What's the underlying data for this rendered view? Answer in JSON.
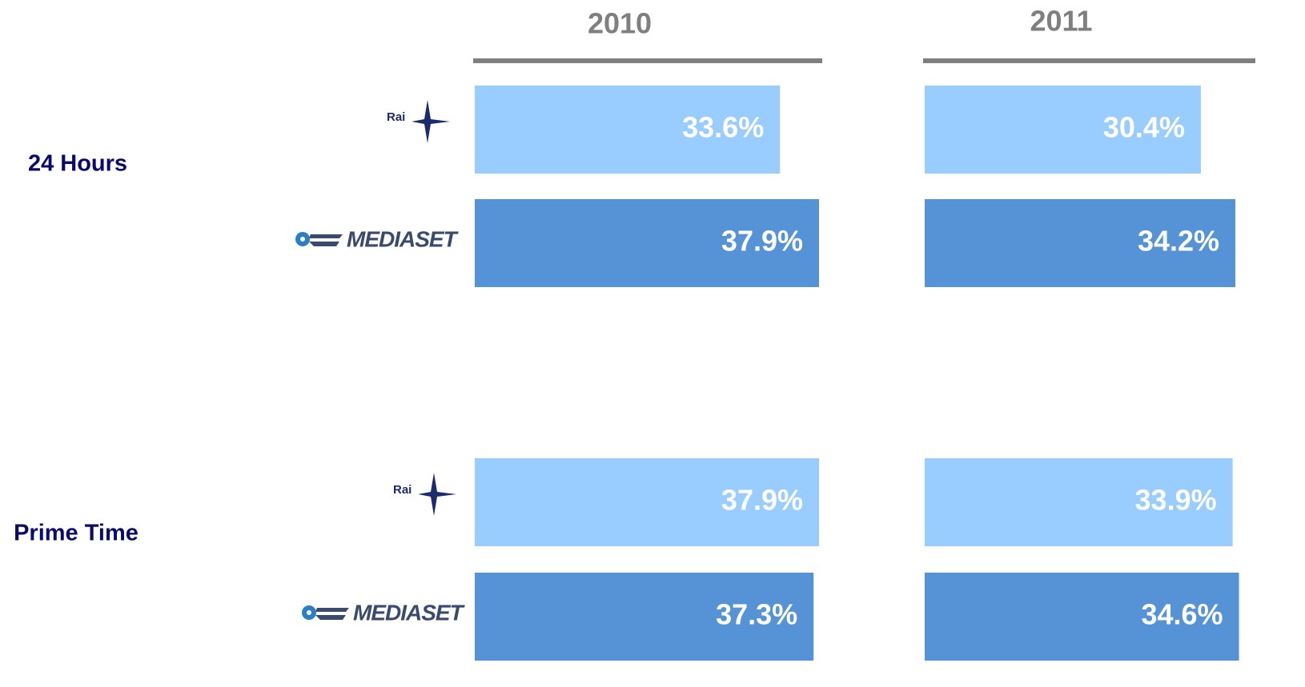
{
  "chart_data": {
    "type": "bar",
    "categories": [
      "24 Hours",
      "Prime Time"
    ],
    "panels": [
      {
        "title": "2010",
        "series": [
          {
            "name": "Rai",
            "color": "#99ccff",
            "values": [
              33.6,
              37.9
            ],
            "value_labels": [
              "33.6%",
              "37.9%"
            ]
          },
          {
            "name": "MEDIASET",
            "color": "#5592d6",
            "values": [
              37.9,
              37.3
            ],
            "value_labels": [
              "37.9%",
              "37.3%"
            ]
          }
        ]
      },
      {
        "title": "2011",
        "series": [
          {
            "name": "Rai",
            "color": "#99ccff",
            "values": [
              30.4,
              33.9
            ],
            "value_labels": [
              "30.4%",
              "33.9%"
            ]
          },
          {
            "name": "MEDIASET",
            "color": "#5592d6",
            "values": [
              34.2,
              34.6
            ],
            "value_labels": [
              "34.2%",
              "34.6%"
            ]
          }
        ]
      }
    ]
  }
}
